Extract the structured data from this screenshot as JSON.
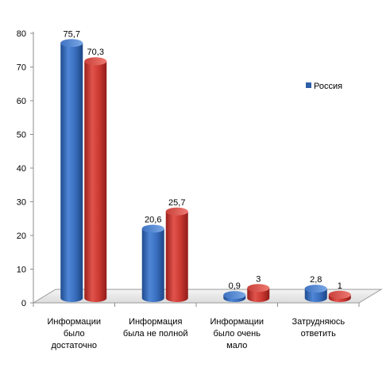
{
  "chart_data": {
    "type": "bar",
    "title": "",
    "xlabel": "",
    "ylabel": "",
    "ylim": [
      0,
      80
    ],
    "yticks": [
      "0",
      "10",
      "20",
      "30",
      "40",
      "50",
      "60",
      "70",
      "80"
    ],
    "categories": [
      [
        "Информации",
        "было",
        "достаточно"
      ],
      [
        "Информация",
        "была не полной"
      ],
      [
        "Информации",
        "было очень",
        "мало"
      ],
      [
        "Затрудняюсь",
        "ответить"
      ]
    ],
    "series": [
      {
        "name": "Россия",
        "values": [
          75.7,
          20.6,
          0.9,
          2.8
        ],
        "labels": [
          "75,7",
          "20,6",
          "0,9",
          "2,8"
        ],
        "color": "#2e5fa8"
      },
      {
        "values": [
          70.3,
          25.7,
          3,
          1
        ],
        "labels": [
          "70,3",
          "25,7",
          "3",
          "1"
        ],
        "color": "#c0302a"
      }
    ],
    "legend": {
      "position": "right",
      "entries": [
        "Россия"
      ]
    },
    "grid": false
  }
}
